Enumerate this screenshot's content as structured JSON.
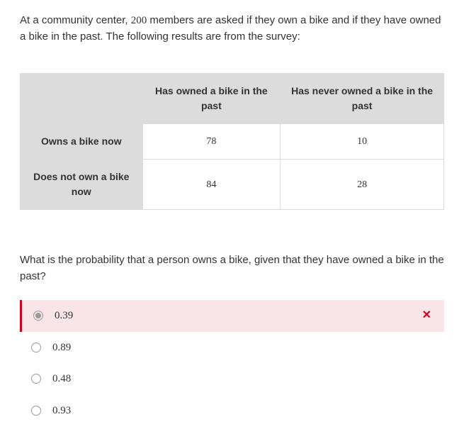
{
  "intro": {
    "before200": "At a community center, ",
    "num200": "200",
    "after200": " members are asked if they own a bike and if they have owned a bike in the past. The following results are from the survey:"
  },
  "table": {
    "col1": "Has owned a bike in the past",
    "col2": "Has never owned a bike in the past",
    "row1_label": "Owns a bike now",
    "row2_label": "Does not own a bike now",
    "r1c1": "78",
    "r1c2": "10",
    "r2c1": "84",
    "r2c2": "28",
    "header_bg": "#dcdcdc",
    "border_color": "#dcdcdc",
    "cell_bg": "#ffffff"
  },
  "question": "What is the probability that a person owns a bike, given that they have owned a bike in the past?",
  "options": {
    "a": "0.39",
    "b": "0.89",
    "c": "0.48",
    "d": "0.93"
  },
  "feedback": {
    "wrong_bg": "#f9e5e8",
    "wrong_border": "#d0021b",
    "x_symbol": "✕",
    "x_color": "#d0021b"
  }
}
